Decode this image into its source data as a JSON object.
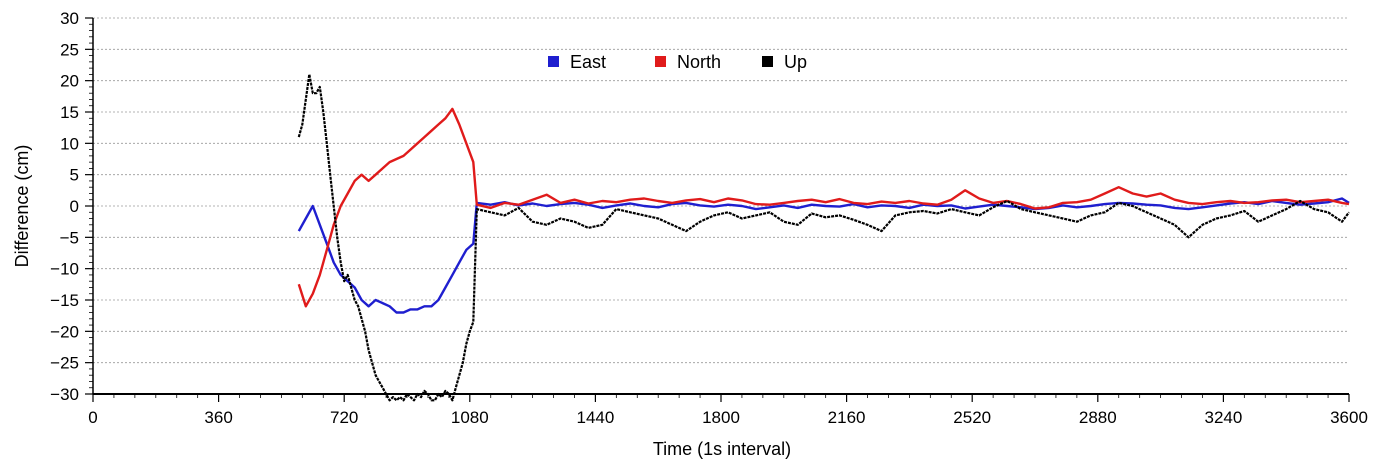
{
  "chart_data": {
    "type": "line",
    "title": "",
    "xlabel": "Time (1s interval)",
    "ylabel": "Difference (cm)",
    "xlim": [
      0,
      3600
    ],
    "ylim": [
      -30,
      30
    ],
    "xticks": [
      0,
      360,
      720,
      1080,
      1440,
      1800,
      2160,
      2520,
      2880,
      3240,
      3600
    ],
    "yticks": [
      30,
      25,
      20,
      15,
      10,
      5,
      0,
      -5,
      -10,
      -15,
      -20,
      -25,
      -30
    ],
    "grid": {
      "horizontal_dotted": true,
      "vertical": false
    },
    "legend": {
      "placement": "top-center",
      "entries": [
        "East",
        "North",
        "Up"
      ]
    },
    "colors": {
      "East": "#1f1fcf",
      "North": "#e01b1b",
      "Up": "#000000"
    },
    "series": [
      {
        "name": "East",
        "x": [
          590,
          610,
          630,
          650,
          670,
          690,
          710,
          730,
          750,
          770,
          790,
          810,
          830,
          850,
          870,
          890,
          910,
          930,
          950,
          970,
          990,
          1010,
          1030,
          1050,
          1070,
          1090,
          1100,
          1140,
          1180,
          1220,
          1260,
          1300,
          1340,
          1380,
          1420,
          1460,
          1500,
          1540,
          1580,
          1620,
          1660,
          1700,
          1740,
          1780,
          1820,
          1860,
          1900,
          1940,
          1980,
          2020,
          2060,
          2100,
          2140,
          2180,
          2220,
          2260,
          2300,
          2340,
          2380,
          2420,
          2460,
          2500,
          2540,
          2580,
          2620,
          2660,
          2700,
          2740,
          2780,
          2820,
          2860,
          2900,
          2940,
          2980,
          3020,
          3060,
          3100,
          3140,
          3180,
          3220,
          3260,
          3300,
          3340,
          3380,
          3420,
          3460,
          3500,
          3540,
          3580,
          3600
        ],
        "y": [
          -4,
          -2,
          0,
          -3,
          -6,
          -9,
          -11,
          -12,
          -13,
          -15,
          -16,
          -15,
          -15.5,
          -16,
          -17,
          -17,
          -16.5,
          -16.5,
          -16,
          -16,
          -15,
          -13,
          -11,
          -9,
          -7,
          -6,
          0.5,
          0.2,
          0.6,
          0.1,
          0.4,
          0,
          0.3,
          0.5,
          0.2,
          -0.3,
          0.1,
          0.4,
          0,
          -0.2,
          0.3,
          0.5,
          0.1,
          -0.1,
          0.2,
          0,
          -0.5,
          -0.2,
          0.1,
          -0.3,
          0.2,
          0,
          -0.1,
          0.3,
          -0.2,
          0.1,
          0,
          -0.3,
          0.2,
          0,
          0.1,
          -0.4,
          -0.1,
          0.2,
          0,
          -0.2,
          -0.5,
          -0.3,
          0.1,
          -0.2,
          0,
          0.3,
          0.5,
          0.4,
          0.2,
          0.1,
          -0.3,
          -0.5,
          -0.2,
          0.1,
          0.4,
          0.6,
          0.3,
          0.8,
          0.5,
          0.2,
          0.4,
          0.6,
          1.2,
          0.5
        ]
      },
      {
        "name": "North",
        "x": [
          590,
          610,
          630,
          650,
          670,
          690,
          710,
          730,
          750,
          770,
          790,
          810,
          830,
          850,
          870,
          890,
          910,
          930,
          950,
          970,
          990,
          1010,
          1030,
          1050,
          1070,
          1090,
          1100,
          1140,
          1180,
          1220,
          1260,
          1300,
          1340,
          1380,
          1420,
          1460,
          1500,
          1540,
          1580,
          1620,
          1660,
          1700,
          1740,
          1780,
          1820,
          1860,
          1900,
          1940,
          1980,
          2020,
          2060,
          2100,
          2140,
          2180,
          2220,
          2260,
          2300,
          2340,
          2380,
          2420,
          2460,
          2500,
          2540,
          2580,
          2620,
          2660,
          2700,
          2740,
          2780,
          2820,
          2860,
          2900,
          2940,
          2980,
          3020,
          3060,
          3100,
          3140,
          3180,
          3220,
          3260,
          3300,
          3340,
          3380,
          3420,
          3460,
          3500,
          3540,
          3580,
          3600
        ],
        "y": [
          -12.5,
          -16,
          -14,
          -11,
          -7,
          -3,
          0,
          2,
          4,
          5,
          4,
          5,
          6,
          7,
          7.5,
          8,
          9,
          10,
          11,
          12,
          13,
          14,
          15.5,
          13,
          10,
          7,
          0.2,
          -0.3,
          0.5,
          0.2,
          1,
          1.8,
          0.5,
          1,
          0.4,
          0.8,
          0.6,
          1,
          1.2,
          0.8,
          0.5,
          0.9,
          1.1,
          0.6,
          1.2,
          0.9,
          0.3,
          0.2,
          0.5,
          0.8,
          1,
          0.6,
          1.1,
          0.5,
          0.3,
          0.7,
          0.5,
          0.8,
          0.4,
          0.2,
          1,
          2.5,
          1.2,
          0.5,
          0.8,
          0.3,
          -0.4,
          -0.2,
          0.5,
          0.6,
          1,
          2,
          3,
          2,
          1.5,
          2,
          1,
          0.5,
          0.3,
          0.6,
          0.8,
          0.5,
          0.6,
          0.9,
          1,
          0.6,
          0.8,
          1,
          0.5,
          0.3
        ]
      },
      {
        "name": "Up",
        "x": [
          590,
          600,
          610,
          620,
          630,
          640,
          650,
          660,
          670,
          680,
          690,
          700,
          710,
          720,
          730,
          740,
          750,
          760,
          770,
          780,
          790,
          800,
          810,
          820,
          830,
          840,
          850,
          860,
          870,
          880,
          890,
          900,
          910,
          920,
          930,
          940,
          950,
          960,
          970,
          980,
          990,
          1000,
          1010,
          1020,
          1030,
          1040,
          1050,
          1060,
          1070,
          1080,
          1090,
          1100,
          1140,
          1180,
          1220,
          1260,
          1300,
          1340,
          1380,
          1420,
          1460,
          1500,
          1540,
          1580,
          1620,
          1660,
          1700,
          1740,
          1780,
          1820,
          1860,
          1900,
          1940,
          1980,
          2020,
          2060,
          2100,
          2140,
          2180,
          2220,
          2260,
          2300,
          2340,
          2380,
          2420,
          2460,
          2500,
          2540,
          2580,
          2620,
          2660,
          2700,
          2740,
          2780,
          2820,
          2860,
          2900,
          2940,
          2980,
          3020,
          3060,
          3100,
          3140,
          3180,
          3220,
          3260,
          3300,
          3340,
          3380,
          3420,
          3460,
          3500,
          3540,
          3580,
          3600
        ],
        "y": [
          11,
          13,
          17,
          21,
          18,
          18,
          19,
          15,
          10,
          5,
          0,
          -5,
          -9,
          -12,
          -11,
          -13,
          -15,
          -16,
          -18,
          -20,
          -23,
          -25,
          -27,
          -28,
          -29,
          -30,
          -31,
          -30.5,
          -31,
          -30.5,
          -31,
          -30,
          -30.5,
          -31,
          -30,
          -30.5,
          -29.5,
          -30,
          -31,
          -31,
          -30,
          -30.5,
          -29.5,
          -30,
          -31,
          -29,
          -27,
          -25,
          -22,
          -20,
          -18.5,
          -0.5,
          -1,
          -1.5,
          -0.3,
          -2.5,
          -3,
          -2,
          -2.5,
          -3.5,
          -3,
          -0.5,
          -1,
          -1.5,
          -2,
          -3,
          -4,
          -2.5,
          -1.5,
          -1,
          -2,
          -1.5,
          -1,
          -2.5,
          -3,
          -1.2,
          -1.8,
          -1.5,
          -2.2,
          -3,
          -4,
          -1.5,
          -1,
          -0.8,
          -1.2,
          -0.5,
          -1,
          -1.5,
          -0.2,
          0.8,
          -0.5,
          -1,
          -1.5,
          -2,
          -2.5,
          -1.5,
          -1,
          0.5,
          0,
          -1,
          -2,
          -3,
          -5,
          -3,
          -2,
          -1.5,
          -0.8,
          -2.5,
          -1.5,
          -0.5,
          0.8,
          -0.5,
          -1,
          -2.5,
          -1
        ]
      }
    ]
  }
}
